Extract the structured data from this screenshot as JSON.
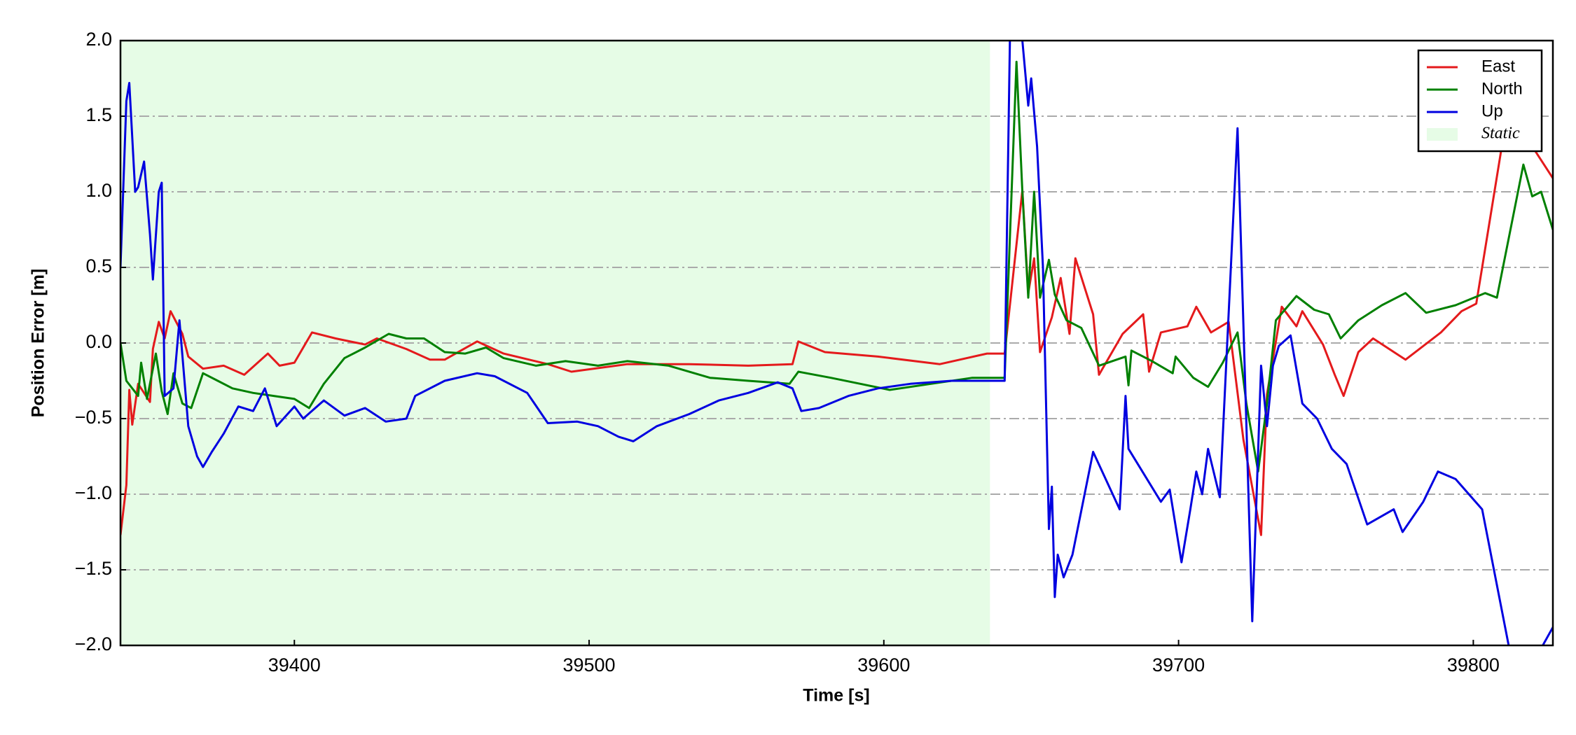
{
  "chart_data": {
    "type": "line",
    "xlabel": "Time [s]",
    "ylabel": "Position Error [m]",
    "xlim": [
      39341,
      39827
    ],
    "ylim": [
      -2.0,
      2.0
    ],
    "xticks": [
      39400,
      39500,
      39600,
      39700,
      39800
    ],
    "yticks": [
      {
        "value": -2.0,
        "label": "−2.0"
      },
      {
        "value": -1.5,
        "label": "−1.5"
      },
      {
        "value": -1.0,
        "label": "−1.0"
      },
      {
        "value": -0.5,
        "label": "−0.5"
      },
      {
        "value": 0.0,
        "label": "0.0"
      },
      0.5,
      {
        "value": 1.0,
        "label": "1.0"
      },
      1.5,
      {
        "value": 2.0,
        "label": "2.0"
      }
    ],
    "grid": true,
    "legend": "upper right",
    "shade": {
      "name": "Static",
      "color": "#e6fce6",
      "x": [
        39341,
        39636
      ]
    },
    "series": [
      {
        "name": "East",
        "color": "#e41a1c",
        "x": [
          39341,
          39343,
          39344,
          39345,
          39347,
          39351,
          39352,
          39354,
          39356,
          39358,
          39362,
          39364,
          39369,
          39376,
          39383,
          39391,
          39395,
          39400,
          39406,
          39414,
          39424,
          39428,
          39438,
          39446,
          39451,
          39462,
          39471,
          39486,
          39494,
          39513,
          39534,
          39554,
          39569,
          39571,
          39580,
          39598,
          39619,
          39635,
          39641,
          39647,
          39649,
          39651,
          39653,
          39657,
          39660,
          39663,
          39665,
          39671,
          39673,
          39681,
          39688,
          39690,
          39694,
          39703,
          39706,
          39711,
          39717,
          39722,
          39728,
          39730,
          39735,
          39740,
          39742,
          39749,
          39753,
          39756,
          39761,
          39766,
          39777,
          39789,
          39796,
          39801,
          39811,
          39819,
          39827
        ],
        "values": [
          -1.27,
          -0.94,
          -0.31,
          -0.54,
          -0.27,
          -0.39,
          -0.04,
          0.14,
          0.03,
          0.21,
          0.06,
          -0.09,
          -0.17,
          -0.15,
          -0.21,
          -0.07,
          -0.15,
          -0.13,
          0.07,
          0.03,
          -0.01,
          0.03,
          -0.04,
          -0.11,
          -0.11,
          0.01,
          -0.07,
          -0.14,
          -0.19,
          -0.14,
          -0.14,
          -0.15,
          -0.14,
          0.01,
          -0.06,
          -0.09,
          -0.14,
          -0.07,
          -0.07,
          1.01,
          0.33,
          0.56,
          -0.06,
          0.17,
          0.43,
          0.06,
          0.56,
          0.19,
          -0.21,
          0.06,
          0.19,
          -0.19,
          0.07,
          0.11,
          0.24,
          0.07,
          0.14,
          -0.64,
          -1.27,
          -0.34,
          0.24,
          0.11,
          0.21,
          -0.01,
          -0.21,
          -0.35,
          -0.06,
          0.03,
          -0.11,
          0.07,
          0.21,
          0.26,
          1.46,
          1.33,
          1.09
        ]
      },
      {
        "name": "North",
        "color": "#008000",
        "x": [
          39341,
          39343,
          39347,
          39348,
          39350,
          39353,
          39355,
          39357,
          39359,
          39362,
          39365,
          39369,
          39374,
          39379,
          39386,
          39393,
          39400,
          39405,
          39410,
          39417,
          39424,
          39432,
          39438,
          39444,
          39451,
          39458,
          39465,
          39471,
          39482,
          39492,
          39503,
          39513,
          39527,
          39541,
          39554,
          39568,
          39571,
          39582,
          39592,
          39602,
          39616,
          39630,
          39641,
          39645,
          39647,
          39649,
          39651,
          39653,
          39656,
          39658,
          39662,
          39667,
          39673,
          39682,
          39683,
          39684,
          39691,
          39698,
          39699,
          39705,
          39710,
          39715,
          39720,
          39723,
          39727,
          39730,
          39733,
          39740,
          39746,
          39751,
          39755,
          39761,
          39769,
          39777,
          39784,
          39794,
          39804,
          39808,
          39817,
          39820,
          39823,
          39827
        ],
        "values": [
          0.0,
          -0.25,
          -0.35,
          -0.13,
          -0.37,
          -0.07,
          -0.32,
          -0.47,
          -0.2,
          -0.4,
          -0.43,
          -0.2,
          -0.25,
          -0.3,
          -0.33,
          -0.35,
          -0.37,
          -0.43,
          -0.27,
          -0.1,
          -0.03,
          0.06,
          0.03,
          0.03,
          -0.06,
          -0.07,
          -0.03,
          -0.1,
          -0.15,
          -0.12,
          -0.15,
          -0.12,
          -0.15,
          -0.23,
          -0.25,
          -0.27,
          -0.19,
          -0.23,
          -0.27,
          -0.31,
          -0.27,
          -0.23,
          -0.23,
          1.86,
          1.0,
          0.3,
          1.0,
          0.3,
          0.55,
          0.32,
          0.15,
          0.1,
          -0.15,
          -0.09,
          -0.28,
          -0.05,
          -0.12,
          -0.2,
          -0.09,
          -0.23,
          -0.29,
          -0.13,
          0.07,
          -0.4,
          -0.85,
          -0.4,
          0.15,
          0.31,
          0.22,
          0.19,
          0.03,
          0.15,
          0.25,
          0.33,
          0.2,
          0.25,
          0.33,
          0.3,
          1.18,
          0.97,
          1.0,
          0.75
        ]
      },
      {
        "name": "Up",
        "color": "#0000e0",
        "x": [
          39341,
          39343,
          39344,
          39346,
          39347,
          39349,
          39351,
          39352,
          39354,
          39355,
          39356,
          39359,
          39361,
          39364,
          39367,
          39369,
          39372,
          39376,
          39381,
          39386,
          39390,
          39394,
          39400,
          39403,
          39410,
          39417,
          39424,
          39431,
          39438,
          39441,
          39451,
          39462,
          39468,
          39479,
          39486,
          39496,
          39503,
          39510,
          39515,
          39523,
          39534,
          39544,
          39554,
          39564,
          39569,
          39572,
          39578,
          39588,
          39598,
          39609,
          39623,
          39641,
          39643,
          39647,
          39649,
          39650,
          39652,
          39654,
          39656,
          39657,
          39658,
          39659,
          39661,
          39664,
          39671,
          39680,
          39682,
          39683,
          39694,
          39697,
          39701,
          39704,
          39706,
          39708,
          39710,
          39714,
          39720,
          39725,
          39728,
          39730,
          39732,
          39734,
          39738,
          39742,
          39747,
          39752,
          39757,
          39764,
          39773,
          39776,
          39783,
          39788,
          39794,
          39803,
          39815,
          39827
        ],
        "values": [
          0.5,
          1.6,
          1.72,
          1.0,
          1.03,
          1.2,
          0.72,
          0.42,
          1.0,
          1.06,
          -0.35,
          -0.3,
          0.15,
          -0.55,
          -0.75,
          -0.82,
          -0.72,
          -0.6,
          -0.42,
          -0.45,
          -0.3,
          -0.55,
          -0.42,
          -0.5,
          -0.38,
          -0.48,
          -0.43,
          -0.52,
          -0.5,
          -0.35,
          -0.25,
          -0.2,
          -0.22,
          -0.33,
          -0.53,
          -0.52,
          -0.55,
          -0.62,
          -0.65,
          -0.55,
          -0.47,
          -0.38,
          -0.33,
          -0.26,
          -0.3,
          -0.45,
          -0.43,
          -0.35,
          -0.3,
          -0.27,
          -0.25,
          -0.25,
          2.3,
          2.0,
          1.57,
          1.75,
          1.3,
          0.5,
          -1.23,
          -0.95,
          -1.68,
          -1.4,
          -1.55,
          -1.4,
          -0.72,
          -1.1,
          -0.35,
          -0.7,
          -1.05,
          -0.97,
          -1.45,
          -1.1,
          -0.85,
          -1.0,
          -0.7,
          -1.02,
          1.42,
          -1.84,
          -0.15,
          -0.55,
          -0.15,
          -0.02,
          0.05,
          -0.4,
          -0.5,
          -0.7,
          -0.8,
          -1.2,
          -1.1,
          -1.25,
          -1.05,
          -0.85,
          -0.9,
          -1.1,
          -2.3,
          -1.88
        ]
      }
    ]
  }
}
